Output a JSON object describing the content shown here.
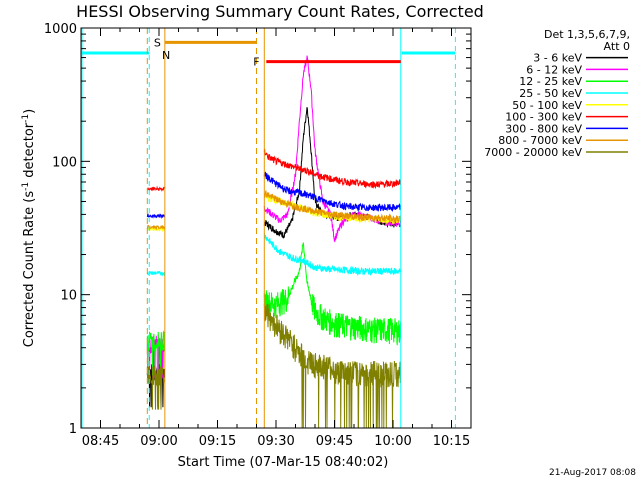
{
  "chart_data": {
    "type": "line",
    "title": "HESSI Observing Summary Count Rates, Corrected",
    "xlabel": "Start Time (07-Mar-15 08:40:02)",
    "ylabel_main": "Corrected Count Rate (s",
    "ylabel_sup1": "-1",
    "ylabel_mid": " detector",
    "ylabel_sup2": "-1",
    "ylabel_end": ")",
    "y_scale": "log",
    "ylim": [
      1,
      1000
    ],
    "xlim_minutes": [
      0,
      100
    ],
    "x_ticks": [
      {
        "m": 5,
        "label": "08:45"
      },
      {
        "m": 20,
        "label": "09:00"
      },
      {
        "m": 35,
        "label": "09:15"
      },
      {
        "m": 50,
        "label": "09:30"
      },
      {
        "m": 65,
        "label": "09:45"
      },
      {
        "m": 80,
        "label": "10:00"
      },
      {
        "m": 95,
        "label": "10:15"
      }
    ],
    "y_ticks": [
      {
        "v": 1,
        "label": "1"
      },
      {
        "v": 10,
        "label": "10"
      },
      {
        "v": 100,
        "label": "100"
      },
      {
        "v": 1000,
        "label": "1000"
      }
    ],
    "legend": {
      "header1": "Det 1,3,5,6,7,9,",
      "header2": "Att 0",
      "position": "right"
    },
    "segments": [
      [
        17,
        21.5
      ],
      [
        47,
        82
      ]
    ],
    "series": [
      {
        "name": "3 - 6 keV",
        "color": "#000000",
        "seg1": 2.6,
        "pts": [
          [
            47,
            35
          ],
          [
            50,
            30
          ],
          [
            52,
            28
          ],
          [
            54,
            35
          ],
          [
            56,
            60
          ],
          [
            57,
            150
          ],
          [
            58,
            260
          ],
          [
            59,
            120
          ],
          [
            60,
            50
          ],
          [
            62,
            40
          ],
          [
            66,
            38
          ],
          [
            70,
            40
          ],
          [
            74,
            38
          ],
          [
            78,
            35
          ],
          [
            80,
            34
          ],
          [
            82,
            34
          ]
        ]
      },
      {
        "name": "6 - 12 keV",
        "color": "#ff00ff",
        "seg1": 4.3,
        "pts": [
          [
            47,
            45
          ],
          [
            49,
            40
          ],
          [
            51,
            36
          ],
          [
            53,
            40
          ],
          [
            55,
            80
          ],
          [
            56,
            200
          ],
          [
            57,
            450
          ],
          [
            58,
            600
          ],
          [
            59,
            350
          ],
          [
            60,
            120
          ],
          [
            62,
            50
          ],
          [
            64,
            40
          ],
          [
            65,
            26
          ],
          [
            67,
            35
          ],
          [
            70,
            40
          ],
          [
            74,
            38
          ],
          [
            78,
            35
          ],
          [
            82,
            34
          ]
        ]
      },
      {
        "name": "12 - 25 keV",
        "color": "#00ff00",
        "seg1": 4.5,
        "pts": [
          [
            47,
            9
          ],
          [
            50,
            8.5
          ],
          [
            53,
            9.5
          ],
          [
            56,
            15
          ],
          [
            57,
            25
          ],
          [
            58,
            12
          ],
          [
            60,
            7.5
          ],
          [
            63,
            6.5
          ],
          [
            66,
            6
          ],
          [
            70,
            5.8
          ],
          [
            75,
            5.5
          ],
          [
            80,
            5.5
          ],
          [
            82,
            5.3
          ]
        ]
      },
      {
        "name": "25 - 50 keV",
        "color": "#00ffff",
        "seg1": 14.5,
        "pts": [
          [
            47,
            28
          ],
          [
            49,
            24
          ],
          [
            51,
            21
          ],
          [
            54,
            19
          ],
          [
            57,
            18
          ],
          [
            60,
            16
          ],
          [
            64,
            15.5
          ],
          [
            68,
            15.3
          ],
          [
            72,
            15
          ],
          [
            76,
            15
          ],
          [
            80,
            15
          ],
          [
            82,
            15
          ]
        ]
      },
      {
        "name": "50 - 100 keV",
        "color": "#ffff00",
        "seg1": 31,
        "pts": [
          [
            47,
            55
          ],
          [
            49,
            52
          ],
          [
            51,
            50
          ],
          [
            54,
            47
          ],
          [
            57,
            44
          ],
          [
            60,
            41
          ],
          [
            64,
            39
          ],
          [
            68,
            38
          ],
          [
            72,
            37
          ],
          [
            76,
            37
          ],
          [
            80,
            36
          ],
          [
            82,
            36
          ]
        ]
      },
      {
        "name": "100 - 300 keV",
        "color": "#ff0000",
        "seg1": 62,
        "pts": [
          [
            47,
            120
          ],
          [
            48,
            108
          ],
          [
            50,
            100
          ],
          [
            52,
            96
          ],
          [
            54,
            92
          ],
          [
            56,
            88
          ],
          [
            58,
            85
          ],
          [
            60,
            80
          ],
          [
            64,
            74
          ],
          [
            68,
            70
          ],
          [
            72,
            68
          ],
          [
            76,
            67
          ],
          [
            80,
            68
          ],
          [
            82,
            70
          ]
        ]
      },
      {
        "name": "300 - 800 keV",
        "color": "#0000ff",
        "seg1": 39,
        "pts": [
          [
            47,
            80
          ],
          [
            50,
            68
          ],
          [
            53,
            60
          ],
          [
            56,
            58
          ],
          [
            59,
            55
          ],
          [
            62,
            51
          ],
          [
            65,
            48
          ],
          [
            68,
            46
          ],
          [
            72,
            45
          ],
          [
            76,
            45
          ],
          [
            80,
            45
          ],
          [
            82,
            45
          ]
        ]
      },
      {
        "name": "800 - 7000 keV",
        "color": "#e69500",
        "seg1": 32,
        "pts": [
          [
            47,
            58
          ],
          [
            50,
            52
          ],
          [
            53,
            48
          ],
          [
            56,
            45
          ],
          [
            59,
            43
          ],
          [
            62,
            41
          ],
          [
            65,
            40
          ],
          [
            68,
            39
          ],
          [
            72,
            38
          ],
          [
            76,
            38
          ],
          [
            80,
            37
          ],
          [
            82,
            37
          ]
        ]
      },
      {
        "name": "7000 - 20000 keV",
        "color": "#808000",
        "seg1": 2.5,
        "pts": [
          [
            47,
            8
          ],
          [
            49,
            6.5
          ],
          [
            51,
            5.5
          ],
          [
            53,
            4.8
          ],
          [
            55,
            4
          ],
          [
            57,
            3.4
          ],
          [
            60,
            3
          ],
          [
            64,
            2.8
          ],
          [
            68,
            2.6
          ],
          [
            72,
            2.6
          ],
          [
            76,
            2.6
          ],
          [
            80,
            2.6
          ],
          [
            82,
            2.6
          ]
        ]
      }
    ],
    "annotations": {
      "saa": {
        "label": "S",
        "level": 780,
        "start_m": 21.5,
        "end_m": 45
      },
      "night": {
        "label": "N",
        "start_m": 20.5
      },
      "flare": {
        "label": "F",
        "level": 560,
        "start_m": 47,
        "end_m": 82
      },
      "cyan_bars": [
        [
          0,
          17.5
        ],
        [
          82,
          96
        ]
      ],
      "cyan_level": 650,
      "cyan_vlines": [
        0,
        17.5,
        82,
        96
      ],
      "orange_vlines_dashed": [
        17,
        45
      ],
      "orange_vlines_solid": [
        21.5,
        47
      ]
    },
    "timestamp": "21-Aug-2017 08:08"
  }
}
